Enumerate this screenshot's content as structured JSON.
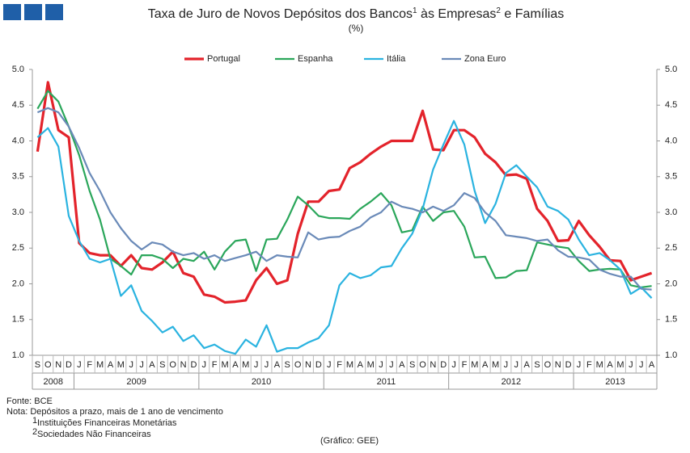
{
  "chart_data": {
    "type": "line",
    "title_parts": [
      "Taxa de Juro de Novos Depósitos dos Bancos",
      "1",
      " às Empresas",
      "2",
      " e Famílias"
    ],
    "subtitle": "(%)",
    "categories": [
      "S",
      "O",
      "N",
      "D",
      "J",
      "F",
      "M",
      "A",
      "M",
      "J",
      "J",
      "A",
      "S",
      "O",
      "N",
      "D",
      "J",
      "F",
      "M",
      "A",
      "M",
      "J",
      "J",
      "A",
      "S",
      "O",
      "N",
      "D",
      "J",
      "F",
      "M",
      "A",
      "M",
      "J",
      "J",
      "A",
      "S",
      "O",
      "N",
      "D",
      "J",
      "F",
      "M",
      "A",
      "M",
      "J",
      "J",
      "A",
      "S",
      "O",
      "N",
      "D",
      "J",
      "F",
      "M",
      "A",
      "M",
      "J",
      "J",
      "A"
    ],
    "years": [
      "2008",
      "2009",
      "2010",
      "2011",
      "2012",
      "2013"
    ],
    "ylim": [
      1.0,
      5.0
    ],
    "yticks": [
      {
        "value": 1.0,
        "label": "1.0"
      },
      {
        "value": 1.5,
        "label": "1.5"
      },
      {
        "value": 2.0,
        "label": "2.0"
      },
      {
        "value": 2.5,
        "label": "2.5"
      },
      {
        "value": 3.0,
        "label": "3.0"
      },
      {
        "value": 3.5,
        "label": "3.5"
      },
      {
        "value": 4.0,
        "label": "4.0"
      },
      {
        "value": 4.5,
        "label": "4.5"
      },
      {
        "value": 5.0,
        "label": "5.0"
      }
    ],
    "y2lim": [
      1.0,
      5.0
    ],
    "y2ticks": [
      {
        "value": 1.0,
        "label": "1.0"
      },
      {
        "value": 1.5,
        "label": "1.5"
      },
      {
        "value": 2.0,
        "label": "2.0"
      },
      {
        "value": 2.5,
        "label": "2.5"
      },
      {
        "value": 3.0,
        "label": "3.0"
      },
      {
        "value": 3.5,
        "label": "3.5"
      },
      {
        "value": 4.0,
        "label": "4.0"
      },
      {
        "value": 4.5,
        "label": "4.5"
      },
      {
        "value": 5.0,
        "label": "5.0"
      }
    ],
    "grid": false,
    "legend": "top",
    "series": [
      {
        "name": "Portugal",
        "color": "#e3232b",
        "values": [
          3.85,
          4.82,
          4.15,
          4.05,
          2.57,
          2.43,
          2.4,
          2.4,
          2.25,
          2.4,
          2.22,
          2.2,
          2.3,
          2.45,
          2.15,
          2.1,
          1.85,
          1.82,
          1.74,
          1.75,
          1.77,
          2.05,
          2.22,
          2.0,
          2.05,
          2.7,
          3.15,
          3.15,
          3.3,
          3.32,
          3.62,
          3.7,
          3.82,
          3.92,
          4.0,
          4.0,
          4.0,
          4.42,
          3.88,
          3.87,
          4.15,
          4.15,
          4.05,
          3.82,
          3.7,
          3.52,
          3.53,
          3.47,
          3.05,
          2.88,
          2.6,
          2.61,
          2.88,
          2.68,
          2.52,
          2.33,
          2.32,
          2.05,
          2.1,
          2.15
        ]
      },
      {
        "name": "Espanha",
        "color": "#2aa65a",
        "values": [
          4.45,
          4.7,
          4.55,
          4.2,
          3.8,
          3.3,
          2.9,
          2.35,
          2.25,
          2.13,
          2.4,
          2.4,
          2.35,
          2.22,
          2.35,
          2.32,
          2.45,
          2.2,
          2.45,
          2.6,
          2.62,
          2.18,
          2.62,
          2.63,
          2.9,
          3.22,
          3.1,
          2.95,
          2.92,
          2.92,
          2.91,
          3.05,
          3.15,
          3.27,
          3.1,
          2.72,
          2.75,
          3.08,
          2.88,
          3.0,
          3.02,
          2.8,
          2.37,
          2.38,
          2.08,
          2.09,
          2.18,
          2.19,
          2.58,
          2.55,
          2.52,
          2.5,
          2.32,
          2.18,
          2.2,
          2.21,
          2.2,
          1.98,
          1.95,
          1.97
        ]
      },
      {
        "name": "Itália",
        "color": "#2ab3e0",
        "values": [
          4.05,
          4.18,
          3.92,
          2.95,
          2.6,
          2.35,
          2.3,
          2.35,
          1.83,
          1.98,
          1.62,
          1.48,
          1.32,
          1.4,
          1.2,
          1.28,
          1.1,
          1.15,
          1.06,
          1.02,
          1.22,
          1.12,
          1.42,
          1.05,
          1.1,
          1.1,
          1.18,
          1.24,
          1.42,
          1.98,
          2.15,
          2.08,
          2.12,
          2.23,
          2.25,
          2.5,
          2.7,
          3.05,
          3.6,
          3.95,
          4.28,
          3.95,
          3.3,
          2.85,
          3.12,
          3.55,
          3.66,
          3.5,
          3.35,
          3.08,
          3.02,
          2.9,
          2.62,
          2.4,
          2.43,
          2.33,
          2.2,
          1.86,
          1.95,
          1.8
        ]
      },
      {
        "name": "Zona Euro",
        "color": "#6a8ab8",
        "values": [
          4.4,
          4.46,
          4.4,
          4.2,
          3.9,
          3.55,
          3.3,
          3.0,
          2.78,
          2.6,
          2.48,
          2.58,
          2.55,
          2.45,
          2.4,
          2.43,
          2.35,
          2.4,
          2.32,
          2.36,
          2.4,
          2.45,
          2.32,
          2.4,
          2.38,
          2.37,
          2.72,
          2.62,
          2.65,
          2.66,
          2.74,
          2.8,
          2.93,
          3.0,
          3.15,
          3.08,
          3.05,
          3.0,
          3.08,
          3.02,
          3.1,
          3.27,
          3.2,
          3.0,
          2.88,
          2.68,
          2.66,
          2.64,
          2.6,
          2.62,
          2.47,
          2.38,
          2.37,
          2.34,
          2.2,
          2.14,
          2.1,
          2.1,
          1.93,
          1.92
        ]
      }
    ]
  },
  "footer": {
    "source": "Fonte: BCE",
    "note": "Nota: Depósitos a prazo, mais de 1 ano de vencimento",
    "footnotes": [
      {
        "mark": "1",
        "text": "Instituições Financeiras Monetárias"
      },
      {
        "mark": "2",
        "text": "Sociedades Não Financeiras"
      }
    ],
    "credit": "(Gráfico: GEE)"
  }
}
